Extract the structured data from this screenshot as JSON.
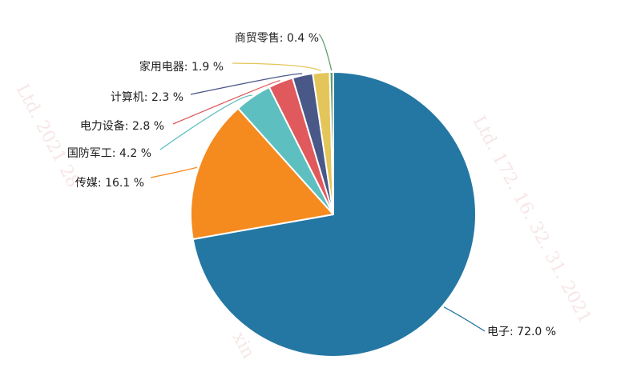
{
  "chart_data": {
    "type": "pie",
    "slices": [
      {
        "label": "电子",
        "value": 72.0,
        "display": "电子: 72.0 %",
        "color": "#2577a3"
      },
      {
        "label": "传媒",
        "value": 16.1,
        "display": "传媒: 16.1 %",
        "color": "#f58a1f"
      },
      {
        "label": "国防军工",
        "value": 4.2,
        "display": "国防军工: 4.2 %",
        "color": "#5dbfc0"
      },
      {
        "label": "电力设备",
        "value": 2.8,
        "display": "电力设备: 2.8 %",
        "color": "#e05a5d"
      },
      {
        "label": "计算机",
        "value": 2.3,
        "display": "计算机: 2.3 %",
        "color": "#4a5888"
      },
      {
        "label": "家用电器",
        "value": 1.9,
        "display": "家用电器: 1.9 %",
        "color": "#e4c55a"
      },
      {
        "label": "商贸零售",
        "value": 0.4,
        "display": "商贸零售: 0.4 %",
        "color": "#5f9a6c"
      }
    ],
    "start_angle_deg": 0,
    "direction": "clockwise",
    "legend": "none",
    "title": ""
  },
  "watermark": {
    "left": "Ltd. 2021 28",
    "right": "Ltd. 172. 16. 32. 31. 2021",
    "bottom": "xin"
  }
}
